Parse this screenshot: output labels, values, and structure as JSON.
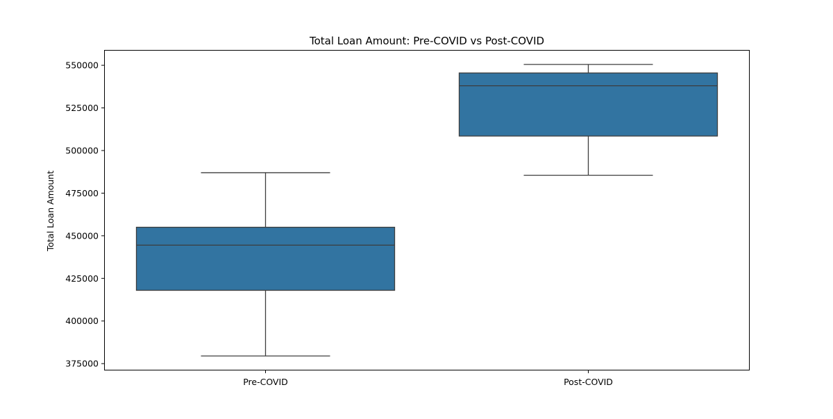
{
  "chart_data": {
    "type": "box",
    "title": "Total Loan Amount: Pre-COVID vs Post-COVID",
    "xlabel": "",
    "ylabel": "Total Loan Amount",
    "categories": [
      "Pre-COVID",
      "Post-COVID"
    ],
    "ylim": [
      371000,
      559000
    ],
    "yticks": [
      375000,
      400000,
      425000,
      450000,
      475000,
      500000,
      525000,
      550000
    ],
    "ytick_labels": [
      "375000",
      "400000",
      "425000",
      "450000",
      "475000",
      "500000",
      "525000",
      "550000"
    ],
    "grid": false,
    "legend": "none",
    "box_color": "#3274a1",
    "line_color": "#3d3d3d",
    "boxes": [
      {
        "category": "Pre-COVID",
        "whisker_low": 379500,
        "q1": 418000,
        "median": 444500,
        "q3": 455000,
        "whisker_high": 487000
      },
      {
        "category": "Post-COVID",
        "whisker_low": 485500,
        "q1": 508500,
        "median": 538000,
        "q3": 545500,
        "whisker_high": 550500
      }
    ]
  }
}
